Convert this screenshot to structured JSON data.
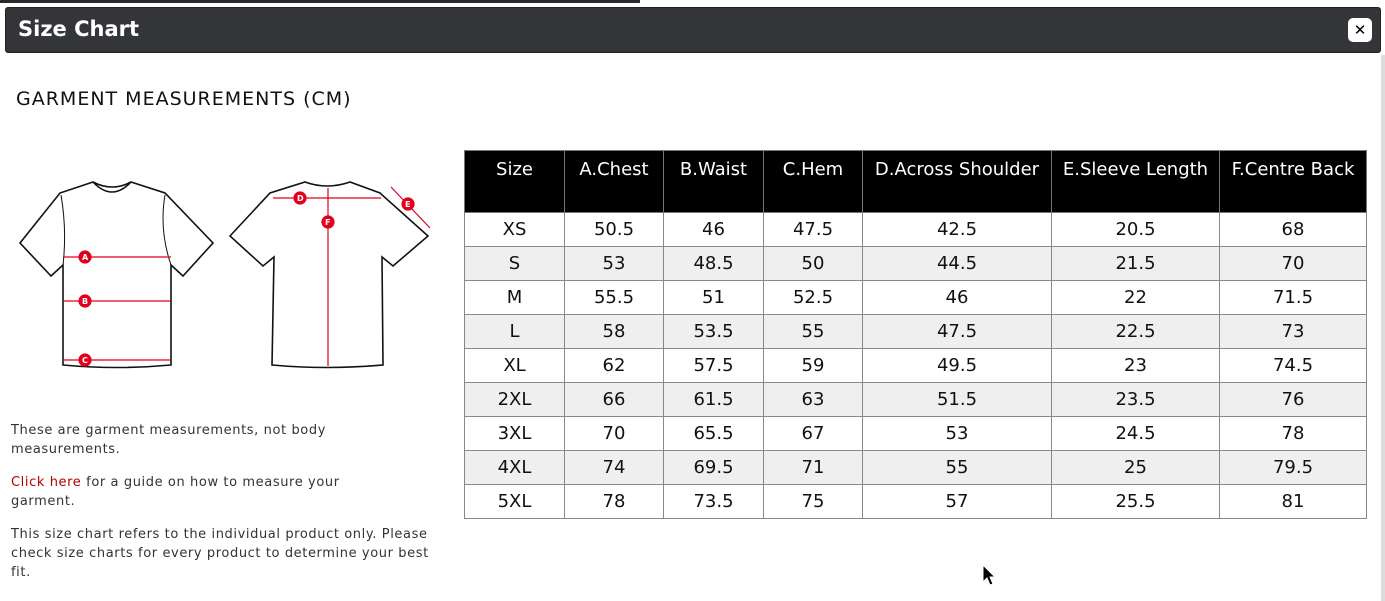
{
  "window": {
    "title": "Size Chart",
    "close_icon": "close-icon"
  },
  "heading": "GARMENT MEASUREMENTS (CM)",
  "diagram": {
    "labels": [
      "A",
      "B",
      "C",
      "D",
      "E",
      "F"
    ],
    "accent": "#e0001b"
  },
  "notes": {
    "line1": "These are garment measurements, not body measurements.",
    "link": "Click here",
    "line2": " for a guide on how to measure your garment.",
    "line3": "This size chart refers to the individual product only. Please check size charts for every product to determine your best fit."
  },
  "table": {
    "headers": [
      "Size",
      "A.Chest",
      "B.Waist",
      "C.Hem",
      "D.Across Shoulder",
      "E.Sleeve Length",
      "F.Centre Back"
    ],
    "rows": [
      [
        "XS",
        "50.5",
        "46",
        "47.5",
        "42.5",
        "20.5",
        "68"
      ],
      [
        "S",
        "53",
        "48.5",
        "50",
        "44.5",
        "21.5",
        "70"
      ],
      [
        "M",
        "55.5",
        "51",
        "52.5",
        "46",
        "22",
        "71.5"
      ],
      [
        "L",
        "58",
        "53.5",
        "55",
        "47.5",
        "22.5",
        "73"
      ],
      [
        "XL",
        "62",
        "57.5",
        "59",
        "49.5",
        "23",
        "74.5"
      ],
      [
        "2XL",
        "66",
        "61.5",
        "63",
        "51.5",
        "23.5",
        "76"
      ],
      [
        "3XL",
        "70",
        "65.5",
        "67",
        "53",
        "24.5",
        "78"
      ],
      [
        "4XL",
        "74",
        "69.5",
        "71",
        "55",
        "25",
        "79.5"
      ],
      [
        "5XL",
        "78",
        "73.5",
        "75",
        "57",
        "25.5",
        "81"
      ]
    ]
  }
}
